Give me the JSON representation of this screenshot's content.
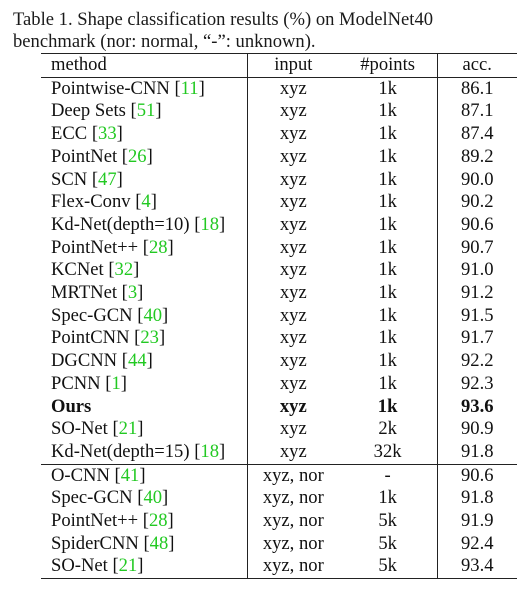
{
  "caption": {
    "text": "Table 1. Shape classification results (%) on ModelNet40 benchmark (nor: normal, “-”: unknown)."
  },
  "table": {
    "headers": [
      "method",
      "input",
      "#points",
      "acc."
    ],
    "group1": [
      {
        "method": "Pointwise-CNN",
        "ref": "11",
        "input": "xyz",
        "points": "1k",
        "acc": "86.1"
      },
      {
        "method": "Deep Sets",
        "ref": "51",
        "input": "xyz",
        "points": "1k",
        "acc": "87.1"
      },
      {
        "method": "ECC",
        "ref": "33",
        "input": "xyz",
        "points": "1k",
        "acc": "87.4"
      },
      {
        "method": "PointNet",
        "ref": "26",
        "input": "xyz",
        "points": "1k",
        "acc": "89.2"
      },
      {
        "method": "SCN",
        "ref": "47",
        "input": "xyz",
        "points": "1k",
        "acc": "90.0"
      },
      {
        "method": "Flex-Conv",
        "ref": "4",
        "input": "xyz",
        "points": "1k",
        "acc": "90.2"
      },
      {
        "method": "Kd-Net(depth=10)",
        "ref": "18",
        "input": "xyz",
        "points": "1k",
        "acc": "90.6"
      },
      {
        "method": "PointNet++",
        "ref": "28",
        "input": "xyz",
        "points": "1k",
        "acc": "90.7"
      },
      {
        "method": "KCNet",
        "ref": "32",
        "input": "xyz",
        "points": "1k",
        "acc": "91.0"
      },
      {
        "method": "MRTNet",
        "ref": "3",
        "input": "xyz",
        "points": "1k",
        "acc": "91.2"
      },
      {
        "method": "Spec-GCN",
        "ref": "40",
        "input": "xyz",
        "points": "1k",
        "acc": "91.5"
      },
      {
        "method": "PointCNN",
        "ref": "23",
        "input": "xyz",
        "points": "1k",
        "acc": "91.7"
      },
      {
        "method": "DGCNN",
        "ref": "44",
        "input": "xyz",
        "points": "1k",
        "acc": "92.2"
      },
      {
        "method": "PCNN",
        "ref": "1",
        "input": "xyz",
        "points": "1k",
        "acc": "92.3"
      },
      {
        "method": "Ours",
        "ref": "",
        "input": "xyz",
        "points": "1k",
        "acc": "93.6",
        "bold": true
      },
      {
        "method": "SO-Net",
        "ref": "21",
        "input": "xyz",
        "points": "2k",
        "acc": "90.9"
      },
      {
        "method": "Kd-Net(depth=15)",
        "ref": "18",
        "input": "xyz",
        "points": "32k",
        "acc": "91.8"
      }
    ],
    "group2": [
      {
        "method": "O-CNN",
        "ref": "41",
        "input": "xyz, nor",
        "points": "-",
        "acc": "90.6"
      },
      {
        "method": "Spec-GCN",
        "ref": "40",
        "input": "xyz, nor",
        "points": "1k",
        "acc": "91.8"
      },
      {
        "method": "PointNet++",
        "ref": "28",
        "input": "xyz, nor",
        "points": "5k",
        "acc": "91.9"
      },
      {
        "method": "SpiderCNN",
        "ref": "48",
        "input": "xyz, nor",
        "points": "5k",
        "acc": "92.4"
      },
      {
        "method": "SO-Net",
        "ref": "21",
        "input": "xyz, nor",
        "points": "5k",
        "acc": "93.4"
      }
    ],
    "ref_color": "#22c922"
  }
}
